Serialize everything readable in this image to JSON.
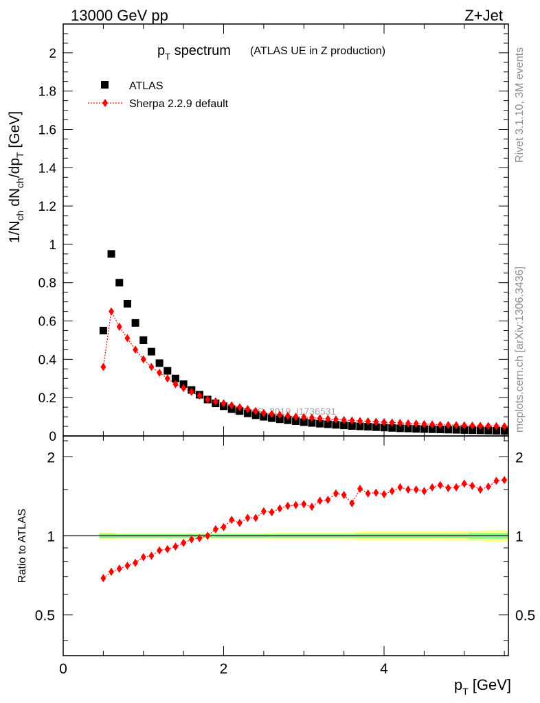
{
  "header": {
    "energy": "13000 GeV pp",
    "process": "Z+Jet"
  },
  "side_labels": {
    "rivet": "Rivet 3.1.10,  3M events",
    "mcplots": "mcplots.cern.ch [arXiv:1306.3436]"
  },
  "colors": {
    "atlas": "#000000",
    "sherpa": "#ff0000",
    "band_inner": "#7fff7f",
    "band_outer": "#ffff99"
  },
  "chart_data": [
    {
      "type": "scatter",
      "title_main": "p",
      "title_sub": "T",
      "title_rest": " spectrum",
      "title_note": "(ATLAS UE in Z production)",
      "ylabel": "1/N_ch dN_ch/dp_T [GeV]",
      "ylabel_parts": {
        "a": "1/N",
        "b": "ch",
        "c": " dN",
        "d": "ch",
        "e": "/dp",
        "f": "T",
        "g": " [GeV]"
      },
      "watermark": "ATLAS_2019_I1736531",
      "xlim": [
        0,
        5.55
      ],
      "ylim": [
        0,
        2.15
      ],
      "yticks": [
        0,
        0.2,
        0.4,
        0.6,
        0.8,
        1,
        1.2,
        1.4,
        1.6,
        1.8,
        2
      ],
      "ytick_labels": [
        "0",
        "0.2",
        "0.4",
        "0.6",
        "0.8",
        "1",
        "1.2",
        "1.4",
        "1.6",
        "1.8",
        "2"
      ],
      "legend": [
        {
          "key": "atlas",
          "label": "ATLAS",
          "marker": "square"
        },
        {
          "key": "sherpa",
          "label": "Sherpa 2.2.9 default",
          "marker": "diamond"
        }
      ],
      "x": [
        0.5,
        0.6,
        0.7,
        0.8,
        0.9,
        1.0,
        1.1,
        1.2,
        1.3,
        1.4,
        1.5,
        1.6,
        1.7,
        1.8,
        1.9,
        2.0,
        2.1,
        2.2,
        2.3,
        2.4,
        2.5,
        2.6,
        2.7,
        2.8,
        2.9,
        3.0,
        3.1,
        3.2,
        3.3,
        3.4,
        3.5,
        3.6,
        3.7,
        3.8,
        3.9,
        4.0,
        4.1,
        4.2,
        4.3,
        4.4,
        4.5,
        4.6,
        4.7,
        4.8,
        4.9,
        5.0,
        5.1,
        5.2,
        5.3,
        5.4,
        5.5
      ],
      "series": [
        {
          "name": "ATLAS",
          "key": "atlas",
          "values": [
            0.55,
            0.95,
            0.8,
            0.69,
            0.59,
            0.5,
            0.44,
            0.38,
            0.34,
            0.3,
            0.27,
            0.24,
            0.215,
            0.19,
            0.17,
            0.155,
            0.14,
            0.13,
            0.118,
            0.108,
            0.1,
            0.093,
            0.087,
            0.082,
            0.077,
            0.072,
            0.068,
            0.064,
            0.061,
            0.058,
            0.055,
            0.052,
            0.05,
            0.048,
            0.046,
            0.044,
            0.042,
            0.04,
            0.039,
            0.037,
            0.036,
            0.035,
            0.034,
            0.033,
            0.032,
            0.031,
            0.03,
            0.029,
            0.028,
            0.027,
            0.026
          ]
        },
        {
          "name": "Sherpa 2.2.9 default",
          "key": "sherpa",
          "values": [
            0.36,
            0.65,
            0.57,
            0.51,
            0.45,
            0.4,
            0.36,
            0.33,
            0.3,
            0.27,
            0.25,
            0.23,
            0.21,
            0.19,
            0.18,
            0.17,
            0.16,
            0.15,
            0.14,
            0.13,
            0.12,
            0.115,
            0.11,
            0.105,
            0.1,
            0.098,
            0.095,
            0.092,
            0.089,
            0.086,
            0.083,
            0.08,
            0.078,
            0.076,
            0.074,
            0.072,
            0.07,
            0.068,
            0.066,
            0.064,
            0.062,
            0.06,
            0.058,
            0.057,
            0.056,
            0.055,
            0.054,
            0.053,
            0.052,
            0.051,
            0.05
          ]
        }
      ]
    },
    {
      "type": "line",
      "ylabel": "Ratio to ATLAS",
      "xlabel_main": "p",
      "xlabel_sub": "T",
      "xlabel_rest": " [GeV]",
      "xlim": [
        0,
        5.55
      ],
      "ylim_log": [
        0.35,
        2.4
      ],
      "yticks": [
        0.5,
        1,
        2
      ],
      "ytick_labels": [
        "0.5",
        "1",
        "2"
      ],
      "xticks": [
        0,
        2,
        4
      ],
      "xtick_labels": [
        "0",
        "2",
        "4"
      ],
      "band_inner_halfwidth": [
        0.02,
        0.02,
        0.015,
        0.015,
        0.015,
        0.015,
        0.015,
        0.015,
        0.015,
        0.015,
        0.015,
        0.015,
        0.015,
        0.015,
        0.015,
        0.015,
        0.015,
        0.015,
        0.015,
        0.015,
        0.015,
        0.015,
        0.015,
        0.015,
        0.015,
        0.015,
        0.015,
        0.015,
        0.015,
        0.015,
        0.015,
        0.015,
        0.02,
        0.02,
        0.02,
        0.02,
        0.02,
        0.02,
        0.02,
        0.02,
        0.02,
        0.02,
        0.02,
        0.02,
        0.02,
        0.02,
        0.025,
        0.025,
        0.025,
        0.025,
        0.025
      ],
      "band_outer_halfwidth": [
        0.03,
        0.03,
        0.025,
        0.025,
        0.025,
        0.025,
        0.025,
        0.025,
        0.025,
        0.025,
        0.025,
        0.025,
        0.025,
        0.025,
        0.025,
        0.025,
        0.025,
        0.025,
        0.025,
        0.025,
        0.025,
        0.03,
        0.03,
        0.03,
        0.03,
        0.03,
        0.03,
        0.03,
        0.03,
        0.03,
        0.03,
        0.035,
        0.04,
        0.04,
        0.04,
        0.04,
        0.04,
        0.04,
        0.04,
        0.04,
        0.04,
        0.04,
        0.04,
        0.045,
        0.045,
        0.045,
        0.045,
        0.045,
        0.05,
        0.05,
        0.05
      ],
      "ratio": [
        0.69,
        0.73,
        0.75,
        0.77,
        0.79,
        0.83,
        0.84,
        0.88,
        0.89,
        0.91,
        0.94,
        0.97,
        0.98,
        1.0,
        1.06,
        1.08,
        1.15,
        1.12,
        1.17,
        1.17,
        1.24,
        1.23,
        1.27,
        1.3,
        1.31,
        1.32,
        1.29,
        1.36,
        1.37,
        1.45,
        1.43,
        1.33,
        1.51,
        1.45,
        1.46,
        1.44,
        1.48,
        1.53,
        1.5,
        1.5,
        1.48,
        1.53,
        1.56,
        1.52,
        1.53,
        1.58,
        1.55,
        1.5,
        1.54,
        1.62,
        1.63
      ]
    }
  ]
}
